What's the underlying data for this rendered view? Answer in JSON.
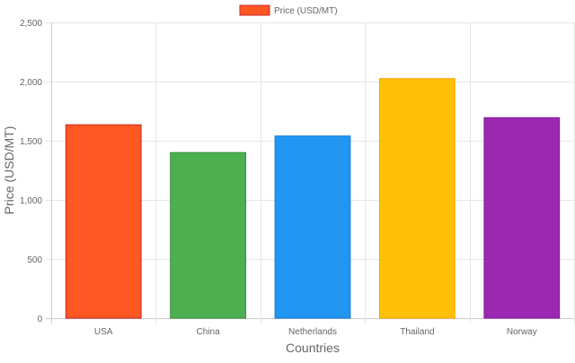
{
  "chart_data": {
    "type": "bar",
    "categories": [
      "USA",
      "China",
      "Netherlands",
      "Thailand",
      "Norway"
    ],
    "series": [
      {
        "name": "Price (USD/MT)",
        "values": [
          1635,
          1400,
          1540,
          2025,
          1695
        ]
      }
    ],
    "bar_colors": [
      "#FF5722",
      "#4CAF50",
      "#2196F3",
      "#FFC107",
      "#9C27B0"
    ],
    "bar_border_colors": [
      "#C62828",
      "#388E3C",
      "#1976D2",
      "#FFA000",
      "#7B1FA2"
    ],
    "legend": {
      "label": "Price (USD/MT)",
      "position": "top",
      "swatch_color": "#FF5722",
      "swatch_border": "#C62828"
    },
    "xlabel": "Countries",
    "ylabel": "Price (USD/MT)",
    "ylim": [
      0,
      2500
    ],
    "yticks": [
      0,
      500,
      1000,
      1500,
      2000,
      2500
    ],
    "ytick_labels": [
      "0",
      "500",
      "1,000",
      "1,500",
      "2,000",
      "2,500"
    ],
    "grid": true
  }
}
